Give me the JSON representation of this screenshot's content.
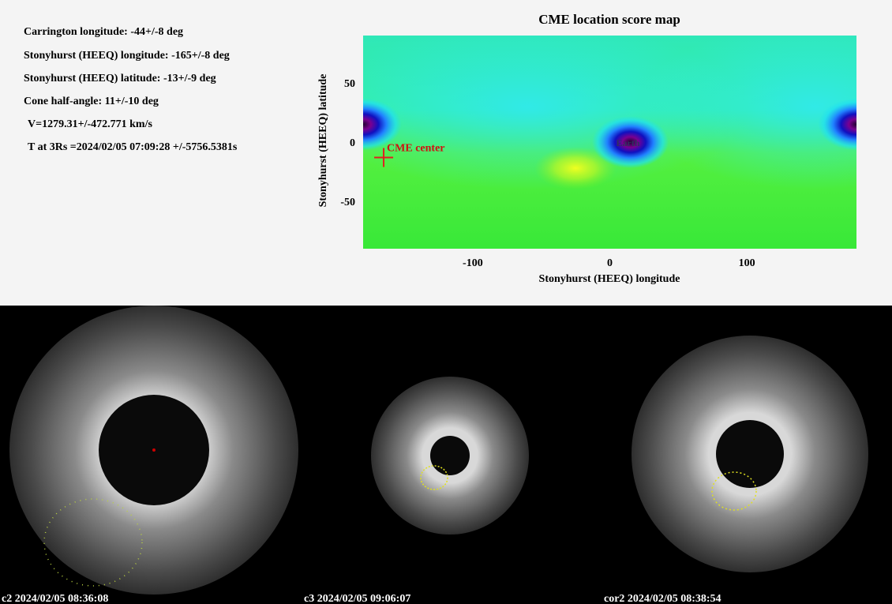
{
  "info_lines": [
    "Carrington longitude: -44+/-8 deg",
    "Stonyhurst (HEEQ) longitude: -165+/-8 deg",
    "Stonyhurst (HEEQ) latitude: -13+/-9 deg",
    "Cone half-angle: 11+/-10 deg",
    "V=1279.31+/-472.771 km/s",
    "T at 3Rs =2024/02/05 07:09:28 +/-5756.5381s"
  ],
  "score_map": {
    "title": "CME location score map",
    "xlabel": "Stonyhurst (HEEQ) longitude",
    "ylabel": "Stonyhurst (HEEQ) latitude",
    "xlim": [
      -180,
      180
    ],
    "ylim": [
      -90,
      90
    ],
    "xticks": [
      -100,
      0,
      100
    ],
    "yticks": [
      50,
      0,
      -50
    ],
    "annotations": [
      {
        "text": "CME center",
        "x": -165,
        "y": -13
      },
      {
        "text": "Earth",
        "x": 0,
        "y": 0
      }
    ]
  },
  "images": [
    {
      "label": "c2 2024/02/05 08:36:08"
    },
    {
      "label": "c3 2024/02/05 09:06:07"
    },
    {
      "label": "cor2 2024/02/05 08:38:54"
    }
  ]
}
